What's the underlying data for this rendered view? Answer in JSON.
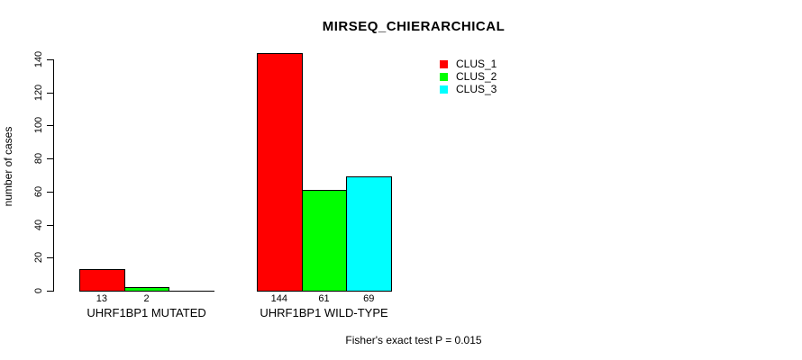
{
  "chart_data": {
    "type": "bar",
    "title": "MIRSEQ_CHIERARCHICAL",
    "ylabel": "number of cases",
    "xlabel": "",
    "categories": [
      "UHRF1BP1 MUTATED",
      "UHRF1BP1 WILD-TYPE"
    ],
    "series": [
      {
        "name": "CLUS_1",
        "color": "#FF0000",
        "values": [
          13,
          144
        ]
      },
      {
        "name": "CLUS_2",
        "color": "#00FF00",
        "values": [
          2,
          61
        ]
      },
      {
        "name": "CLUS_3",
        "color": "#00FFFF",
        "values": [
          0,
          69
        ]
      }
    ],
    "yticks": [
      0,
      20,
      40,
      60,
      80,
      100,
      120,
      140
    ],
    "ylim": [
      0,
      140
    ],
    "grid": false,
    "legend_position": "top-right",
    "bar_border_color": "#000000",
    "annotation": "Fisher's exact test P = 0.015"
  }
}
